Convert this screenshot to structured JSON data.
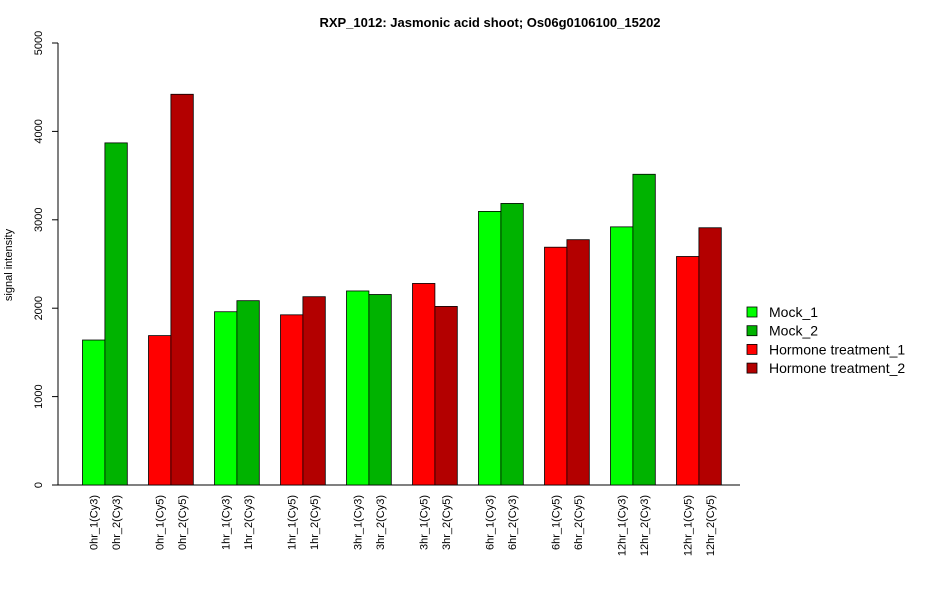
{
  "chart_data": {
    "type": "bar",
    "title": "RXP_1012: Jasmonic acid shoot; Os06g0106100_15202",
    "ylabel": "signal intensity",
    "xlabel": "",
    "ylim": [
      0,
      5000
    ],
    "yticks": [
      "0",
      "1000",
      "2000",
      "3000",
      "4000",
      "5000"
    ],
    "legend_position": "right",
    "grid": false,
    "series_styles": [
      {
        "name": "Mock_1",
        "color": "#00ff00"
      },
      {
        "name": "Mock_2",
        "color": "#00b300"
      },
      {
        "name": "Hormone treatment_1",
        "color": "#ff0000"
      },
      {
        "name": "Hormone treatment_2",
        "color": "#b30000"
      }
    ],
    "groups": [
      {
        "bars": [
          {
            "label": "0hr_1(Cy3)",
            "value": 1640,
            "series": 0
          },
          {
            "label": "0hr_2(Cy3)",
            "value": 3870,
            "series": 1
          }
        ]
      },
      {
        "bars": [
          {
            "label": "0hr_1(Cy5)",
            "value": 1690,
            "series": 2
          },
          {
            "label": "0hr_2(Cy5)",
            "value": 4420,
            "series": 3
          }
        ]
      },
      {
        "bars": [
          {
            "label": "1hr_1(Cy3)",
            "value": 1960,
            "series": 0
          },
          {
            "label": "1hr_2(Cy3)",
            "value": 2085,
            "series": 1
          }
        ]
      },
      {
        "bars": [
          {
            "label": "1hr_1(Cy5)",
            "value": 1925,
            "series": 2
          },
          {
            "label": "1hr_2(Cy5)",
            "value": 2130,
            "series": 3
          }
        ]
      },
      {
        "bars": [
          {
            "label": "3hr_1(Cy3)",
            "value": 2195,
            "series": 0
          },
          {
            "label": "3hr_2(Cy3)",
            "value": 2155,
            "series": 1
          }
        ]
      },
      {
        "bars": [
          {
            "label": "3hr_1(Cy5)",
            "value": 2280,
            "series": 2
          },
          {
            "label": "3hr_2(Cy5)",
            "value": 2020,
            "series": 3
          }
        ]
      },
      {
        "bars": [
          {
            "label": "6hr_1(Cy3)",
            "value": 3095,
            "series": 0
          },
          {
            "label": "6hr_2(Cy3)",
            "value": 3185,
            "series": 1
          }
        ]
      },
      {
        "bars": [
          {
            "label": "6hr_1(Cy5)",
            "value": 2690,
            "series": 2
          },
          {
            "label": "6hr_2(Cy5)",
            "value": 2775,
            "series": 3
          }
        ]
      },
      {
        "bars": [
          {
            "label": "12hr_1(Cy3)",
            "value": 2920,
            "series": 0
          },
          {
            "label": "12hr_2(Cy3)",
            "value": 3515,
            "series": 1
          }
        ]
      },
      {
        "bars": [
          {
            "label": "12hr_1(Cy5)",
            "value": 2585,
            "series": 2
          },
          {
            "label": "12hr_2(Cy5)",
            "value": 2910,
            "series": 3
          }
        ]
      }
    ]
  }
}
